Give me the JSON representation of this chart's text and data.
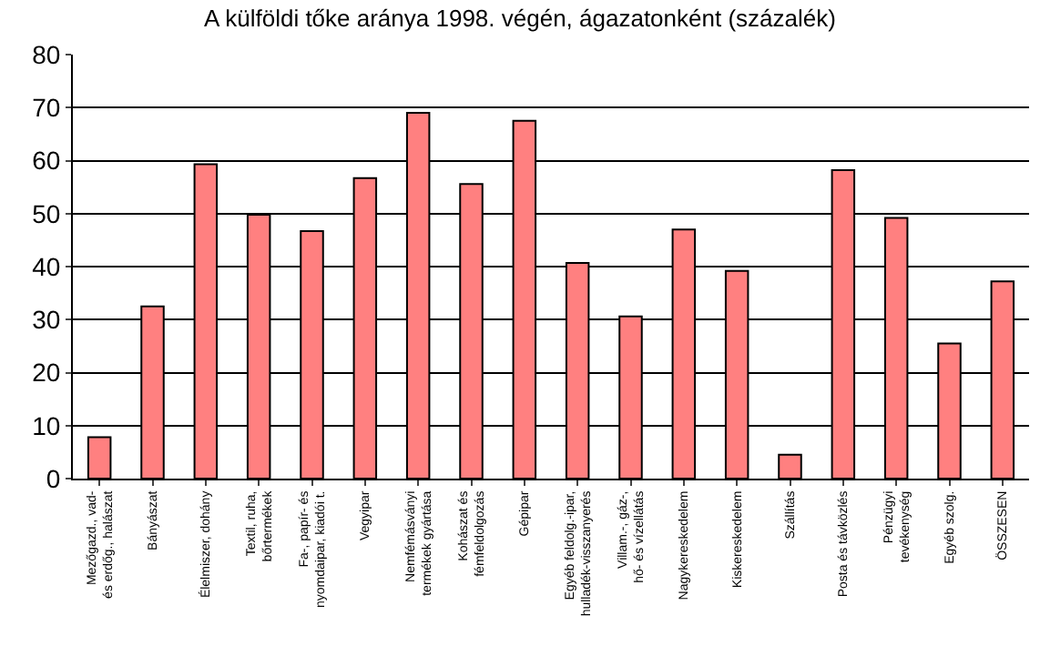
{
  "chart_data": {
    "type": "bar",
    "title": "A külföldi tőke aránya 1998. végén, ágazatonként (százalék)",
    "categories": [
      "Mezőgazd., vad-\nés erdőg., halászat",
      "Bányászat",
      "Élelmiszer, dohány",
      "Textil, ruha,\nbőrtermékek",
      "Fa-, papír- és\nnyomdaipar, kiadói t.",
      "Vegyipar",
      "Nemfémásványi\ntermékek gyártása",
      "Kohászat és\nfémfeldolgozás",
      "Gépipar",
      "Egyéb feldolg.-ipar,\nhulladék-visszanyerés",
      "Villam.-, gáz-,\nhő- és vízellátás",
      "Nagykereskedelem",
      "Kiskereskedelem",
      "Szállítás",
      "Posta és távközlés",
      "Pénzügyi\ntevékenység",
      "Egyéb szolg.",
      "ÖSSZESEN"
    ],
    "values": [
      7.8,
      32.5,
      59.3,
      49.8,
      46.7,
      56.7,
      69,
      55.6,
      67.5,
      40.7,
      30.6,
      47,
      39.2,
      4.5,
      58.2,
      49.2,
      25.5,
      37.2
    ],
    "color": "#ff8080",
    "ylim": [
      0,
      80
    ],
    "yticks": [
      0,
      10,
      20,
      30,
      40,
      50,
      60,
      70,
      80
    ],
    "grid": "y"
  }
}
